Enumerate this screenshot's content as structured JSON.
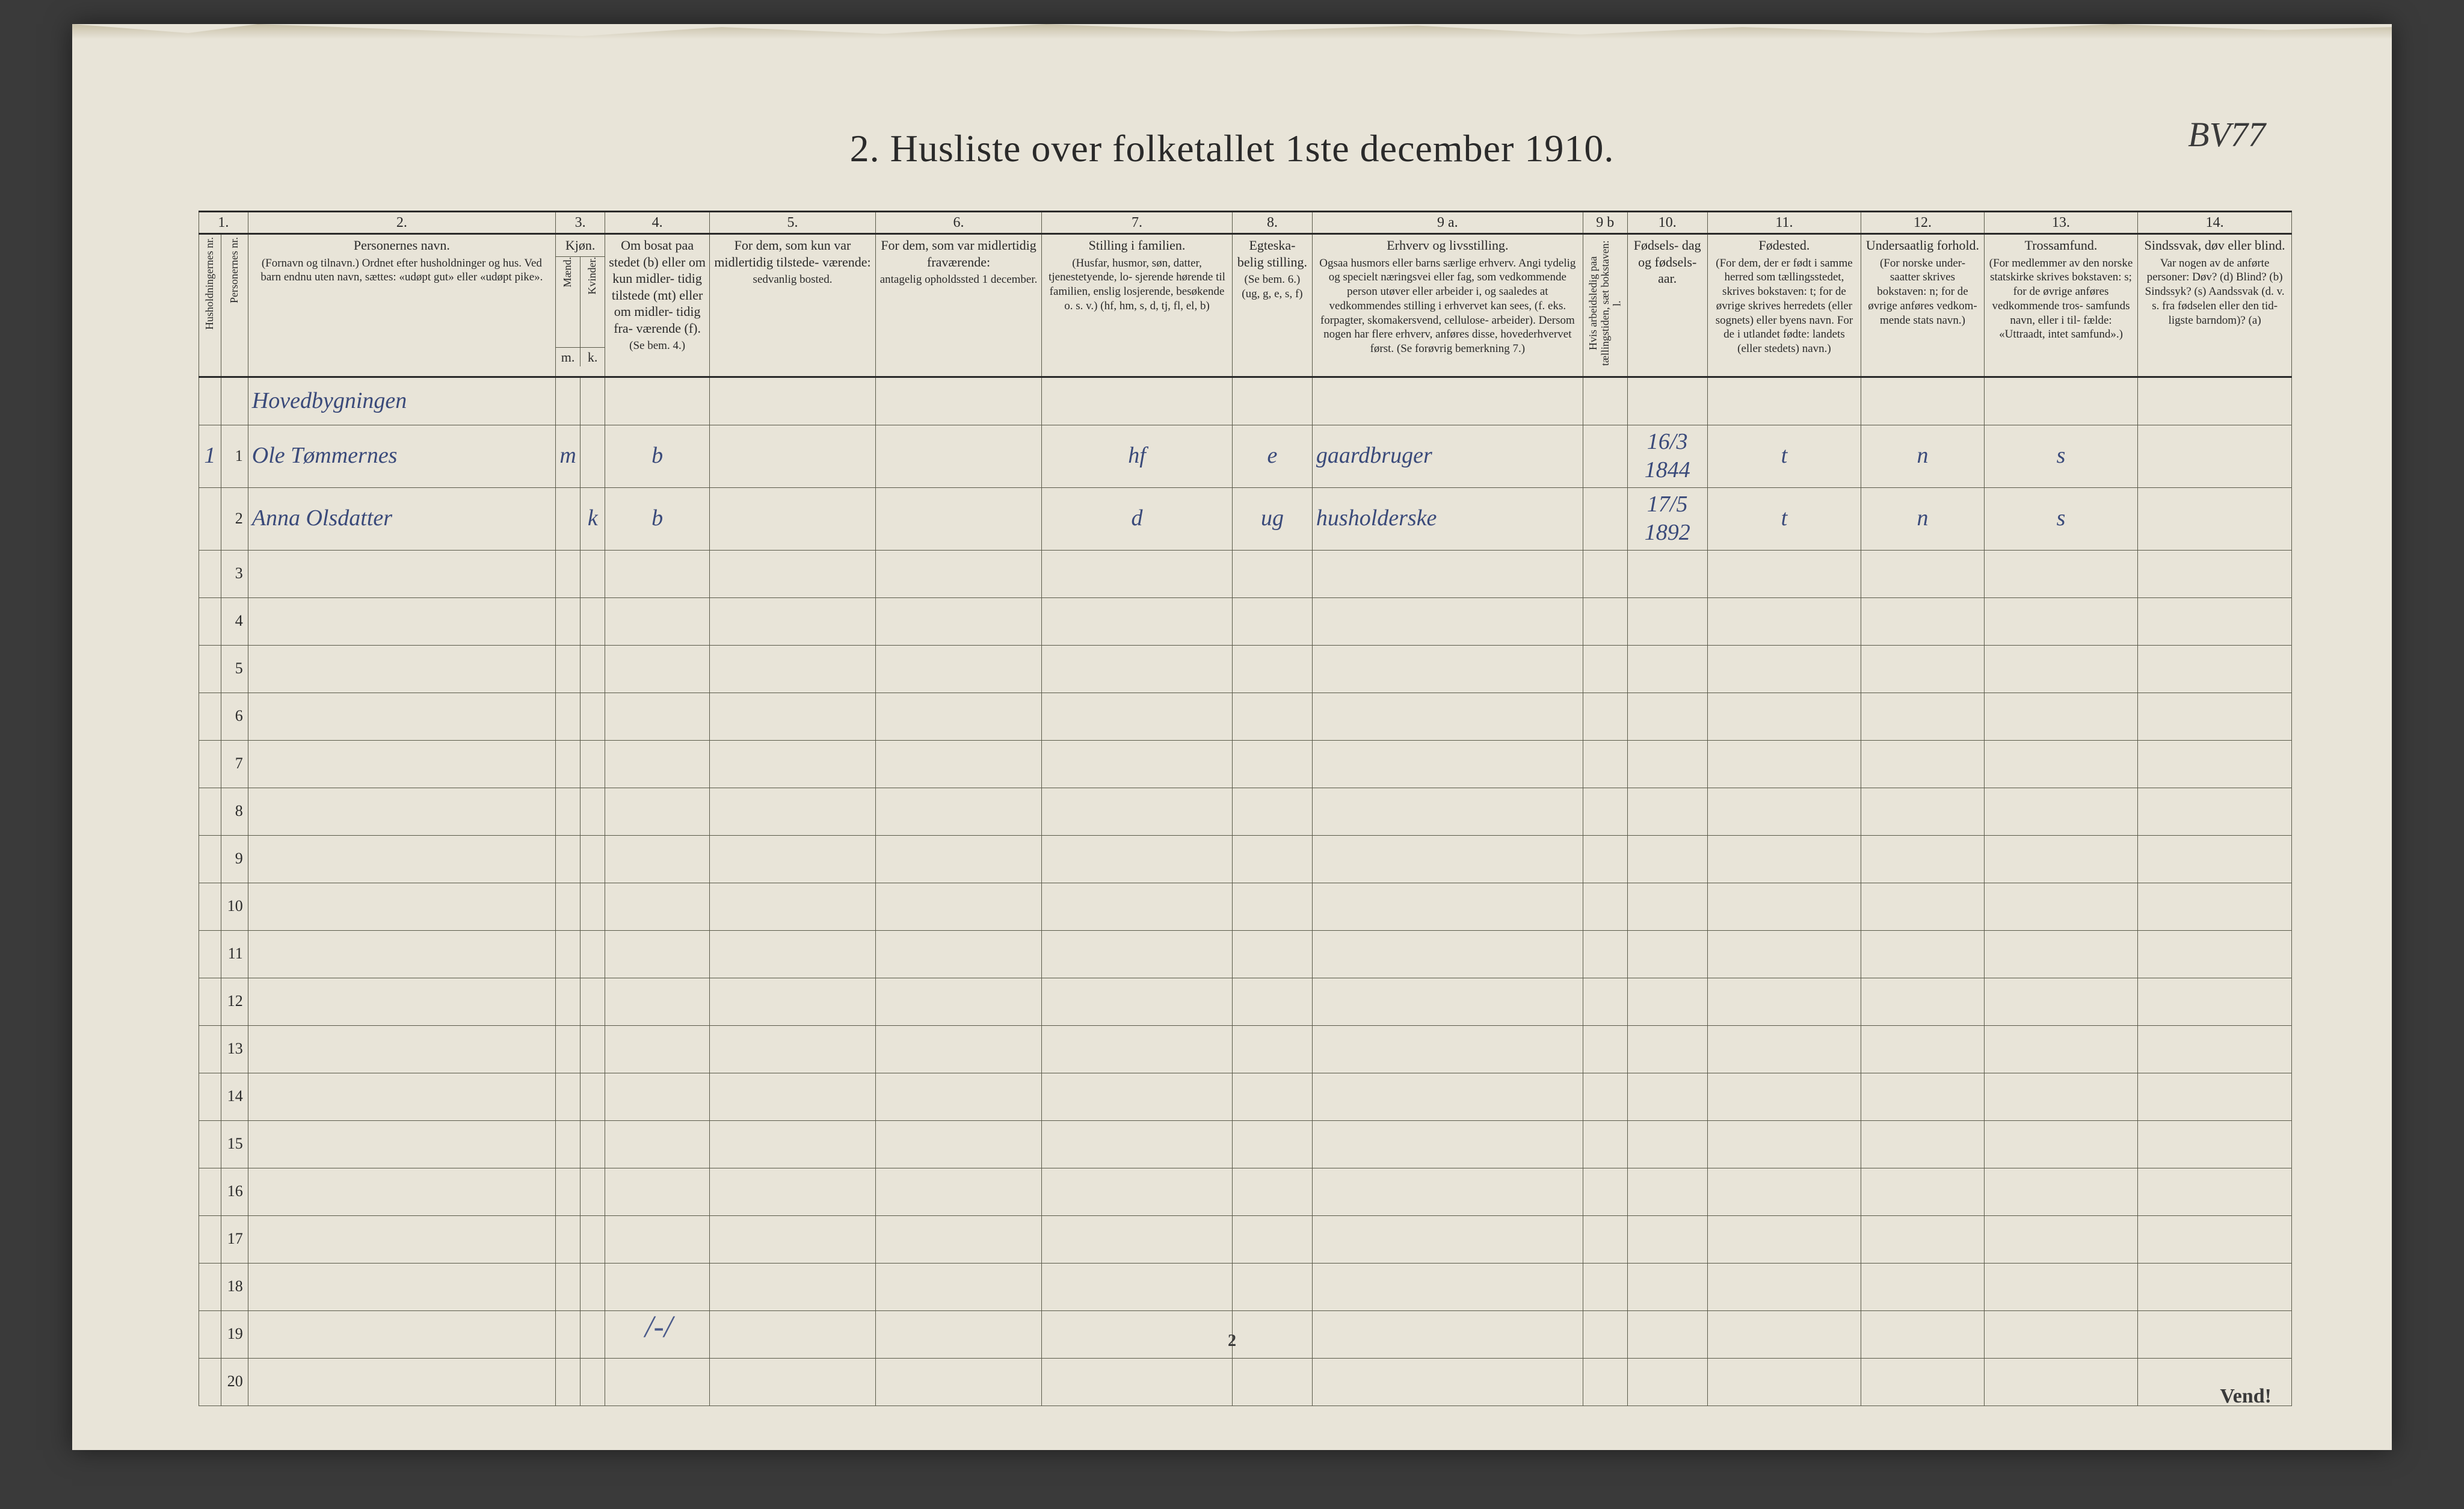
{
  "title": "2.   Husliste over folketallet 1ste december 1910.",
  "top_right_annotation": "BV77",
  "page_number": "2",
  "turn_marker": "Vend!",
  "tally_mark": "/-/",
  "table": {
    "border_color": "#5a5a4a",
    "heavy_border_color": "#2a2a2a",
    "paper_color": "#e8e4d8",
    "ink_color": "#2a2a2a",
    "hand_color": "#3a4a7a",
    "col_nums": [
      "1.",
      "2.",
      "3.",
      "4.",
      "5.",
      "6.",
      "7.",
      "8.",
      "9 a.",
      "9 b",
      "10.",
      "11.",
      "12.",
      "13.",
      "14."
    ],
    "headers": {
      "c1a": "Husholdningernes nr.",
      "c1b": "Personernes nr.",
      "c2_main": "Personernes navn.",
      "c2_sub": "(Fornavn og tilnavn.)\nOrdnet efter husholdninger og hus.\nVed barn endnu uten navn, sættes: «udøpt gut»\neller «udøpt pike».",
      "c3_top": "Kjøn.",
      "c3a": "Mænd.",
      "c3b": "Kvinder.",
      "c3_bottom_m": "m.",
      "c3_bottom_k": "k.",
      "c4_main": "Om bosat\npaa stedet\n(b) eller om\nkun midler-\ntidig tilstede\n(mt) eller\nom midler-\ntidig fra-\nværende (f).",
      "c4_sub": "(Se bem. 4.)",
      "c5_main": "For dem, som kun var\nmidlertidig tilstede-\nværende:",
      "c5_sub": "sedvanlig bosted.",
      "c6_main": "For dem, som var\nmidlertidig\nfraværende:",
      "c6_sub": "antagelig opholdssted\n1 december.",
      "c7_main": "Stilling i familien.",
      "c7_sub": "(Husfar, husmor, søn,\ndatter, tjenestetyende, lo-\nsjerende hørende til familien,\nenslig losjerende, besøkende\no. s. v.)\n(hf, hm, s, d, tj, fl,\nel, b)",
      "c8_main": "Egteska-\nbelig\nstilling.",
      "c8_sub": "(Se bem. 6.)\n(ug, g,\ne, s, f)",
      "c9a_main": "Erhverv og livsstilling.",
      "c9a_sub": "Ogsaa husmors eller barns særlige erhverv.\nAngi tydelig og specielt næringsvei eller fag, som\nvedkommende person utøver eller arbeider i,\nog saaledes at vedkommendes stilling i erhvervet kan\nsees, (f. eks. forpagter, skomakersvend, cellulose-\narbeider). Dersom nogen har flere erhverv,\nanføres disse, hovederhvervet først.\n(Se forøvrig bemerkning 7.)",
      "c9b": "Hvis arbeidsledig\npaa tællingstiden,\nsæt bokstaven:  l.",
      "c10_main": "Fødsels-\ndag\nog\nfødsels-\naar.",
      "c11_main": "Fødested.",
      "c11_sub": "(For dem, der er født\ni samme herred som\ntællingsstedet,\nskrives bokstaven: t;\nfor de øvrige skrives\nherredets (eller sognets)\neller byens navn.\nFor de i utlandet fødte:\nlandets (eller stedets)\nnavn.)",
      "c12_main": "Undersaatlig\nforhold.",
      "c12_sub": "(For norske under-\nsaatter skrives\nbokstaven: n;\nfor de øvrige\nanføres vedkom-\nmende stats navn.)",
      "c13_main": "Trossamfund.",
      "c13_sub": "(For medlemmer av\nden norske statskirke\nskrives bokstaven: s;\nfor de øvrige anføres\nvedkommende tros-\nsamfunds navn, eller i til-\nfælde: «Uttraadt, intet\nsamfund».)",
      "c14_main": "Sindssvak, døv\neller blind.",
      "c14_sub": "Var nogen av de anførte\npersoner:\nDøv?          (d)\nBlind?        (b)\nSindssyk?  (s)\nAandssvak (d. v. s. fra\nfødselen eller den tid-\nligste barndom)?  (a)"
    },
    "section_label": "Hovedbygningen",
    "rows": [
      {
        "hh": "1",
        "pn": "1",
        "name": "Ole Tømmernes",
        "m": "m",
        "k": "",
        "bosat": "b",
        "c5": "",
        "c6": "",
        "famstilling": "hf",
        "egte": "e",
        "erhverv": "gaardbruger",
        "ledig": "",
        "fodsel": "16/3 1844",
        "fodested": "t",
        "undersaat": "n",
        "tros": "s",
        "c14": ""
      },
      {
        "hh": "",
        "pn": "2",
        "name": "Anna Olsdatter",
        "m": "",
        "k": "k",
        "bosat": "b",
        "c5": "",
        "c6": "",
        "famstilling": "d",
        "egte": "ug",
        "erhverv": "husholderske",
        "ledig": "",
        "fodsel": "17/5 1892",
        "fodested": "t",
        "undersaat": "n",
        "tros": "s",
        "c14": ""
      }
    ],
    "empty_rows": [
      3,
      4,
      5,
      6,
      7,
      8,
      9,
      10,
      11,
      12,
      13,
      14,
      15,
      16,
      17,
      18,
      19,
      20
    ]
  }
}
